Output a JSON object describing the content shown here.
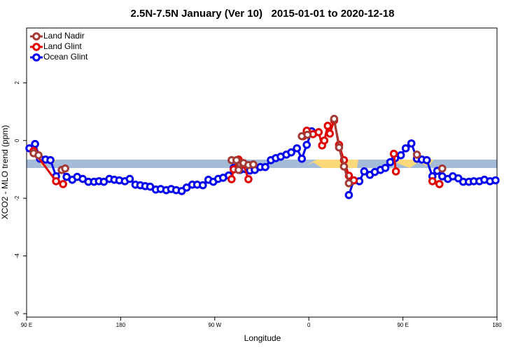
{
  "chart_data": {
    "type": "line",
    "title": "2.5N-7.5N January (Ver 10)   2015-01-01 to 2020-12-18",
    "xlabel": "Longitude",
    "ylabel": "XCO2 - MLO trend (ppm)",
    "xlim": [
      90,
      540
    ],
    "ylim": [
      -6.12,
      3.9
    ],
    "xticks": [
      {
        "value": 90,
        "label": "90 E"
      },
      180,
      {
        "value": 270,
        "label": "90 W"
      },
      {
        "value": 360,
        "label": "0"
      },
      {
        "value": 450,
        "label": "90 E"
      },
      {
        "value": 540,
        "label": "180"
      }
    ],
    "yticks": [
      -6,
      -4,
      -2,
      0,
      2
    ],
    "legend": "top-left",
    "series": [
      {
        "name": "Land Nadir",
        "color": "#a33a35",
        "x": [
          96.7,
          101.4,
          null,
          123.6,
          126.9,
          null,
          286.1,
          290.8,
          292.8,
          297.5,
          302.2,
          306.9,
          null,
          353.3,
          358.7,
          null,
          384.2,
          388.9,
          393.6,
          398.3,
          null,
          463.4,
          null,
          487.6
        ],
        "values": [
          -0.44,
          -0.51,
          null,
          -1.02,
          -0.97,
          null,
          -0.68,
          -0.68,
          -1.02,
          -0.78,
          -0.85,
          -0.83,
          null,
          0.15,
          0.2,
          null,
          0.75,
          -0.24,
          -0.9,
          -1.48,
          null,
          -0.49,
          null,
          -0.97
        ]
      },
      {
        "name": "Land Glint",
        "color": "#e00000",
        "x": [
          96.7,
          118.2,
          124.9,
          null,
          286.1,
          288.1,
          292.8,
          297.5,
          302.2,
          null,
          354.6,
          358.0,
          364.0,
          369.4,
          372.7,
          374.8,
          378.1,
          380.1,
          384.2,
          388.9,
          393.6,
          398.3,
          403.0,
          null,
          441.3,
          443.3,
          null,
          478.2,
          484.9
        ],
        "values": [
          -0.36,
          -1.41,
          -1.51,
          null,
          -1.34,
          -1.0,
          -0.66,
          -0.83,
          -1.34,
          null,
          0.15,
          0.34,
          0.22,
          0.29,
          -0.17,
          0.0,
          0.51,
          0.24,
          0.7,
          -0.15,
          -0.68,
          -1.22,
          -1.38,
          null,
          -0.46,
          -1.07,
          null,
          -1.41,
          -1.51
        ]
      },
      {
        "name": "Ocean Glint",
        "color": "#0000ee",
        "x": [
          92.7,
          98.1,
          102.8,
          108.1,
          112.8,
          118.2,
          123.6,
          128.3,
          133.7,
          138.4,
          143.7,
          149.1,
          154.5,
          159.2,
          163.9,
          169.2,
          173.9,
          178.7,
          184.0,
          188.7,
          194.1,
          198.8,
          203.5,
          208.2,
          213.6,
          218.3,
          223.6,
          228.3,
          233.1,
          238.4,
          243.1,
          248.5,
          253.2,
          258.6,
          263.9,
          268.6,
          273.3,
          278.0,
          283.4,
          288.1,
          294.2,
          298.9,
          303.6,
          308.3,
          313.6,
          318.3,
          323.7,
          328.4,
          333.1,
          338.5,
          343.2,
          348.6,
          353.3,
          358.0,
          362.7,
          null,
          398.3,
          403.0,
          408.3,
          413.0,
          418.4,
          423.1,
          428.5,
          433.2,
          437.9,
          442.6,
          448.0,
          452.7,
          458.1,
          463.4,
          468.1,
          472.8,
          478.2,
          482.9,
          487.6,
          493.0,
          497.7,
          503.0,
          507.7,
          513.1,
          517.8,
          523.2,
          527.9,
          533.3,
          538.6
        ],
        "values": [
          -0.27,
          -0.12,
          -0.63,
          -0.66,
          -0.68,
          -1.24,
          -1.02,
          -1.26,
          -1.36,
          -1.26,
          -1.33,
          -1.43,
          -1.43,
          -1.41,
          -1.43,
          -1.33,
          -1.36,
          -1.38,
          -1.41,
          -1.33,
          -1.53,
          -1.55,
          -1.58,
          -1.6,
          -1.7,
          -1.68,
          -1.72,
          -1.68,
          -1.72,
          -1.75,
          -1.63,
          -1.53,
          -1.53,
          -1.55,
          -1.36,
          -1.43,
          -1.33,
          -1.29,
          -1.21,
          -0.95,
          -1.02,
          -0.99,
          -1.04,
          -1.02,
          -0.92,
          -0.92,
          -0.68,
          -0.61,
          -0.56,
          -0.49,
          -0.41,
          -0.27,
          -0.63,
          -0.15,
          0.32,
          null,
          -1.89,
          -1.38,
          -1.41,
          -1.07,
          -1.19,
          -1.09,
          -1.02,
          -0.95,
          -0.75,
          -0.61,
          -0.51,
          -0.27,
          -0.1,
          -0.63,
          -0.66,
          -0.68,
          -1.24,
          -1.05,
          -1.24,
          -1.33,
          -1.24,
          -1.31,
          -1.43,
          -1.43,
          -1.41,
          -1.41,
          -1.36,
          -1.41,
          -1.38
        ]
      }
    ]
  }
}
